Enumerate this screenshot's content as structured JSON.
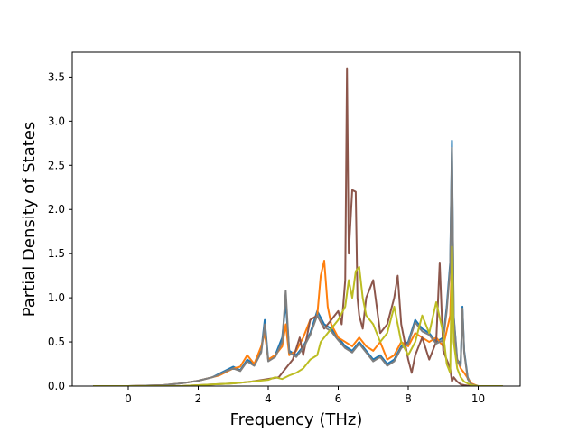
{
  "chart_data": {
    "type": "line",
    "xlabel": "Frequency (THz)",
    "ylabel": "Partial Density of States",
    "xlim": [
      -1.6,
      11.2
    ],
    "ylim": [
      0,
      3.78
    ],
    "xticks": [
      0,
      2,
      4,
      6,
      8,
      10
    ],
    "yticks": [
      0.0,
      0.5,
      1.0,
      1.5,
      2.0,
      2.5,
      3.0,
      3.5
    ],
    "xtick_labels": [
      "0",
      "2",
      "4",
      "6",
      "8",
      "10"
    ],
    "ytick_labels": [
      "0.0",
      "0.5",
      "1.0",
      "1.5",
      "2.0",
      "2.5",
      "3.0",
      "3.5"
    ],
    "grid": false,
    "legend": "none",
    "series": [
      {
        "color": "#1f77b4",
        "x": [
          -1.0,
          0.0,
          1.0,
          1.5,
          2.0,
          2.4,
          2.6,
          2.8,
          3.0,
          3.2,
          3.4,
          3.6,
          3.8,
          3.9,
          4.0,
          4.2,
          4.4,
          4.5,
          4.6,
          4.8,
          5.0,
          5.2,
          5.4,
          5.6,
          5.8,
          6.0,
          6.2,
          6.4,
          6.6,
          6.8,
          7.0,
          7.2,
          7.4,
          7.6,
          7.8,
          8.0,
          8.2,
          8.4,
          8.6,
          8.8,
          9.0,
          9.1,
          9.2,
          9.25,
          9.3,
          9.4,
          9.5,
          9.55,
          9.6,
          9.7,
          9.8,
          10.0,
          10.7
        ],
        "y": [
          0,
          0,
          0.01,
          0.03,
          0.06,
          0.1,
          0.14,
          0.18,
          0.22,
          0.18,
          0.3,
          0.25,
          0.4,
          0.75,
          0.3,
          0.35,
          0.55,
          0.95,
          0.4,
          0.35,
          0.45,
          0.6,
          0.85,
          0.7,
          0.65,
          0.55,
          0.45,
          0.4,
          0.5,
          0.4,
          0.3,
          0.35,
          0.25,
          0.3,
          0.45,
          0.5,
          0.75,
          0.65,
          0.6,
          0.5,
          0.55,
          0.9,
          1.4,
          2.78,
          0.8,
          0.3,
          0.25,
          0.9,
          0.4,
          0.1,
          0.02,
          0,
          0
        ]
      },
      {
        "color": "#ff7f0e",
        "x": [
          -1.0,
          0.0,
          1.0,
          1.5,
          2.0,
          2.4,
          2.6,
          2.8,
          3.0,
          3.2,
          3.4,
          3.6,
          3.8,
          3.9,
          4.0,
          4.2,
          4.4,
          4.5,
          4.6,
          4.8,
          5.0,
          5.2,
          5.4,
          5.5,
          5.6,
          5.7,
          5.8,
          6.0,
          6.2,
          6.4,
          6.6,
          6.8,
          7.0,
          7.2,
          7.4,
          7.6,
          7.8,
          8.0,
          8.2,
          8.4,
          8.6,
          8.8,
          9.0,
          9.2,
          9.25,
          9.3,
          9.4,
          9.5,
          9.6,
          9.8,
          10.0,
          10.7
        ],
        "y": [
          0,
          0,
          0.01,
          0.03,
          0.06,
          0.1,
          0.12,
          0.16,
          0.2,
          0.22,
          0.35,
          0.25,
          0.45,
          0.6,
          0.3,
          0.35,
          0.45,
          0.7,
          0.35,
          0.4,
          0.55,
          0.75,
          0.8,
          1.25,
          1.42,
          0.9,
          0.7,
          0.55,
          0.5,
          0.45,
          0.55,
          0.45,
          0.4,
          0.5,
          0.3,
          0.35,
          0.5,
          0.45,
          0.6,
          0.55,
          0.5,
          0.55,
          0.45,
          0.8,
          1.5,
          0.6,
          0.3,
          0.2,
          0.15,
          0.03,
          0,
          0
        ]
      },
      {
        "color": "#8c564b",
        "x": [
          -1.0,
          0.0,
          1.0,
          1.5,
          2.0,
          2.5,
          3.0,
          3.5,
          4.0,
          4.3,
          4.5,
          4.7,
          4.9,
          5.0,
          5.2,
          5.4,
          5.6,
          5.8,
          6.0,
          6.1,
          6.2,
          6.25,
          6.3,
          6.4,
          6.5,
          6.55,
          6.6,
          6.7,
          6.8,
          7.0,
          7.2,
          7.4,
          7.6,
          7.7,
          7.8,
          8.0,
          8.1,
          8.2,
          8.4,
          8.6,
          8.8,
          8.9,
          9.0,
          9.1,
          9.2,
          9.25,
          9.3,
          9.4,
          9.5,
          9.6,
          9.8,
          10.0,
          10.7
        ],
        "y": [
          0,
          0,
          0,
          0,
          0.01,
          0.02,
          0.03,
          0.05,
          0.08,
          0.1,
          0.2,
          0.3,
          0.55,
          0.35,
          0.75,
          0.8,
          0.65,
          0.75,
          0.85,
          0.7,
          1.2,
          3.6,
          1.5,
          2.22,
          2.2,
          1.0,
          0.8,
          0.65,
          1.0,
          1.2,
          0.6,
          0.7,
          1.0,
          1.25,
          0.7,
          0.3,
          0.15,
          0.35,
          0.55,
          0.3,
          0.5,
          1.4,
          0.4,
          0.3,
          0.2,
          0.05,
          0.1,
          0.05,
          0.02,
          0.01,
          0,
          0,
          0
        ]
      },
      {
        "color": "#7f7f7f",
        "x": [
          -1.0,
          0.0,
          1.0,
          1.5,
          2.0,
          2.4,
          2.6,
          2.8,
          3.0,
          3.2,
          3.4,
          3.6,
          3.8,
          3.9,
          4.0,
          4.2,
          4.4,
          4.5,
          4.6,
          4.8,
          5.0,
          5.2,
          5.4,
          5.6,
          5.8,
          6.0,
          6.2,
          6.4,
          6.6,
          6.8,
          7.0,
          7.2,
          7.4,
          7.6,
          7.8,
          8.0,
          8.2,
          8.4,
          8.6,
          8.8,
          9.0,
          9.1,
          9.2,
          9.25,
          9.3,
          9.4,
          9.5,
          9.55,
          9.6,
          9.7,
          9.8,
          10.0,
          10.7
        ],
        "y": [
          0,
          0,
          0.01,
          0.03,
          0.06,
          0.1,
          0.13,
          0.17,
          0.2,
          0.17,
          0.28,
          0.23,
          0.38,
          0.7,
          0.28,
          0.33,
          0.5,
          1.08,
          0.38,
          0.33,
          0.43,
          0.58,
          0.8,
          0.67,
          0.62,
          0.52,
          0.43,
          0.38,
          0.48,
          0.38,
          0.28,
          0.33,
          0.23,
          0.28,
          0.43,
          0.48,
          0.72,
          0.62,
          0.58,
          0.48,
          0.52,
          0.85,
          1.35,
          2.7,
          0.78,
          0.28,
          0.23,
          0.88,
          0.38,
          0.08,
          0.02,
          0,
          0
        ]
      },
      {
        "color": "#bcbd22",
        "x": [
          -1.0,
          0.0,
          1.0,
          1.5,
          2.0,
          2.5,
          3.0,
          3.5,
          4.0,
          4.2,
          4.4,
          4.6,
          4.8,
          5.0,
          5.2,
          5.4,
          5.5,
          5.6,
          5.8,
          6.0,
          6.2,
          6.3,
          6.4,
          6.5,
          6.6,
          6.7,
          6.8,
          7.0,
          7.2,
          7.4,
          7.6,
          7.8,
          8.0,
          8.2,
          8.4,
          8.6,
          8.8,
          9.0,
          9.1,
          9.2,
          9.25,
          9.3,
          9.4,
          9.5,
          9.6,
          9.8,
          10.0,
          10.7
        ],
        "y": [
          0,
          0,
          0,
          0,
          0.01,
          0.02,
          0.03,
          0.05,
          0.07,
          0.1,
          0.08,
          0.12,
          0.15,
          0.2,
          0.3,
          0.35,
          0.5,
          0.55,
          0.65,
          0.75,
          0.9,
          1.2,
          1.0,
          1.3,
          1.35,
          1.0,
          0.8,
          0.7,
          0.5,
          0.6,
          0.9,
          0.5,
          0.35,
          0.5,
          0.8,
          0.6,
          0.95,
          0.6,
          0.25,
          0.15,
          1.58,
          0.5,
          0.2,
          0.1,
          0.05,
          0.01,
          0,
          0
        ]
      }
    ]
  }
}
